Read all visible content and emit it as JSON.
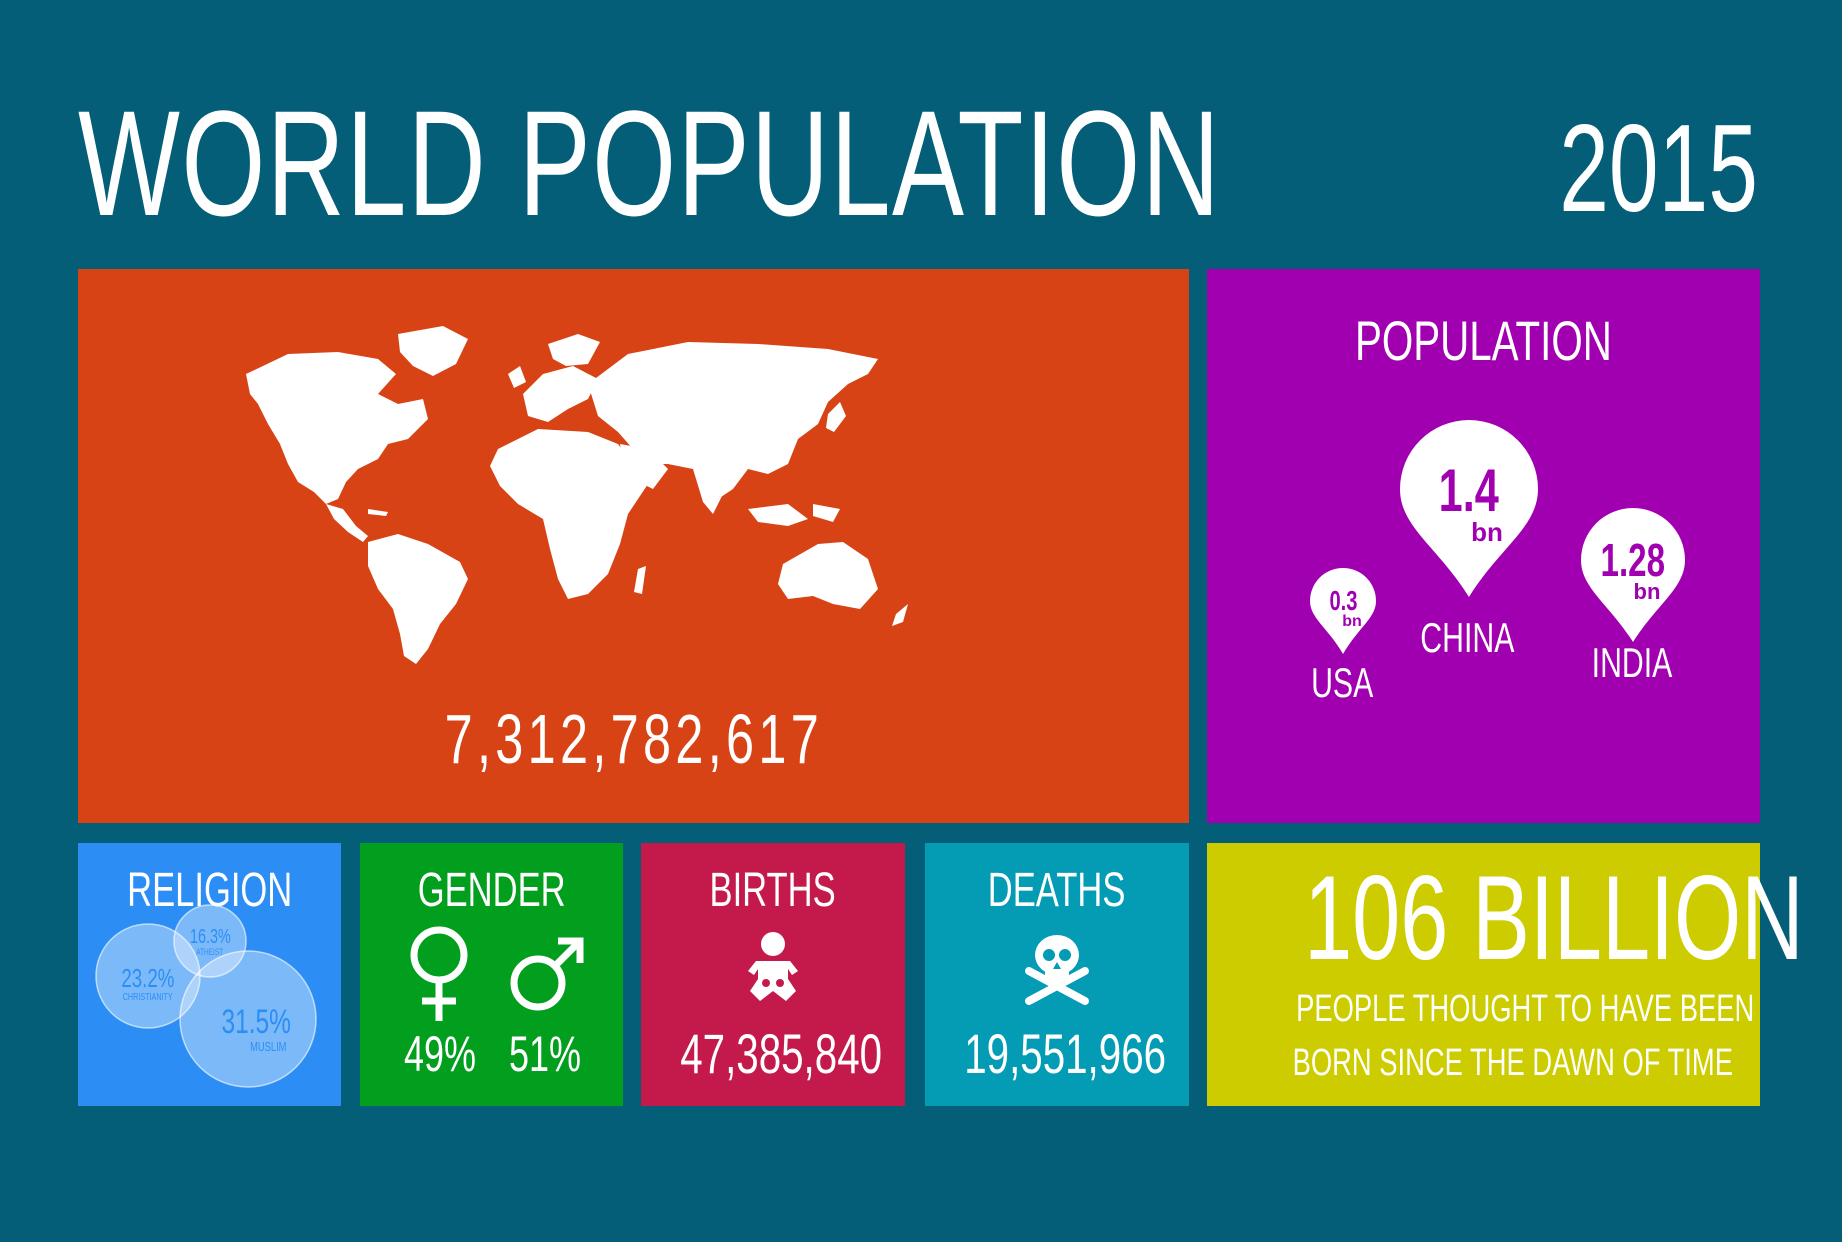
{
  "header": {
    "title": "WORLD POPULATION",
    "year": "2015"
  },
  "world": {
    "total": "7,312,782,617"
  },
  "population": {
    "heading": "POPULATION",
    "countries": [
      {
        "name": "USA",
        "value": "0.3",
        "unit": "bn"
      },
      {
        "name": "CHINA",
        "value": "1.4",
        "unit": "bn"
      },
      {
        "name": "INDIA",
        "value": "1.28",
        "unit": "bn"
      }
    ]
  },
  "religion": {
    "heading": "RELIGION",
    "groups": [
      {
        "name": "ATHEIST",
        "value": "16.3%"
      },
      {
        "name": "CHRISTIANITY",
        "value": "23.2%"
      },
      {
        "name": "MUSLIM",
        "value": "31.5%"
      }
    ]
  },
  "gender": {
    "heading": "GENDER",
    "female": "49%",
    "male": "51%",
    "female_icon": "female-symbol",
    "male_icon": "male-symbol"
  },
  "births": {
    "heading": "BIRTHS",
    "value": "47,385,840",
    "icon": "baby"
  },
  "deaths": {
    "heading": "DEATHS",
    "value": "19,551,966",
    "icon": "skull-crossbones"
  },
  "historical": {
    "value": "106 BILLION",
    "line1": "PEOPLE THOUGHT TO HAVE BEEN",
    "line2": "BORN SINCE THE DAWN OF TIME"
  },
  "colors": {
    "background": "#045e78",
    "map": "#d84315",
    "population": "#a100b1",
    "religion": "#2c8ef5",
    "gender": "#029e1e",
    "births": "#c31a4b",
    "deaths": "#039cb4",
    "billion": "#cccc00"
  }
}
